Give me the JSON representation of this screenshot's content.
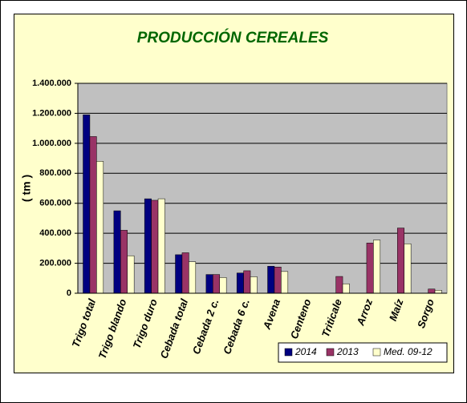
{
  "chart_data": {
    "type": "bar",
    "title": "PRODUCCIÓN CEREALES",
    "y_label": "( tm )",
    "categories": [
      "Trigo total",
      "Trigo blando",
      "Trigo duro",
      "Cebada total",
      "Cebada 2 c.",
      "Cebada 6 c.",
      "Avena",
      "Centeno",
      "Triticale",
      "Arroz",
      "Maíz",
      "Sorgo"
    ],
    "series": [
      {
        "name": "2014",
        "color": "#000080",
        "values": [
          1190000,
          550000,
          630000,
          257000,
          125000,
          135000,
          180000,
          0,
          0,
          0,
          0,
          0
        ]
      },
      {
        "name": "2013",
        "color": "#993366",
        "values": [
          1045000,
          420000,
          620000,
          270000,
          125000,
          150000,
          175000,
          0,
          112000,
          335000,
          435000,
          28000
        ]
      },
      {
        "name": "Med. 09-12",
        "color": "#ffffcc",
        "values": [
          880000,
          250000,
          630000,
          210000,
          105000,
          110000,
          145000,
          0,
          63000,
          355000,
          330000,
          20000
        ]
      }
    ],
    "ylim": [
      0,
      1400000
    ],
    "yticks": [
      0,
      {
        "value": 200000,
        "label": "200.000"
      },
      {
        "value": 400000,
        "label": "400.000"
      },
      {
        "value": 600000,
        "label": "600.000"
      },
      {
        "value": 800000,
        "label": "800.000"
      },
      {
        "value": 1000000,
        "label": "1.000.000"
      },
      {
        "value": 1200000,
        "label": "1.200.000"
      },
      {
        "value": 1400000,
        "label": "1.400.000"
      }
    ],
    "grid": true,
    "legend": "bottom-right"
  }
}
